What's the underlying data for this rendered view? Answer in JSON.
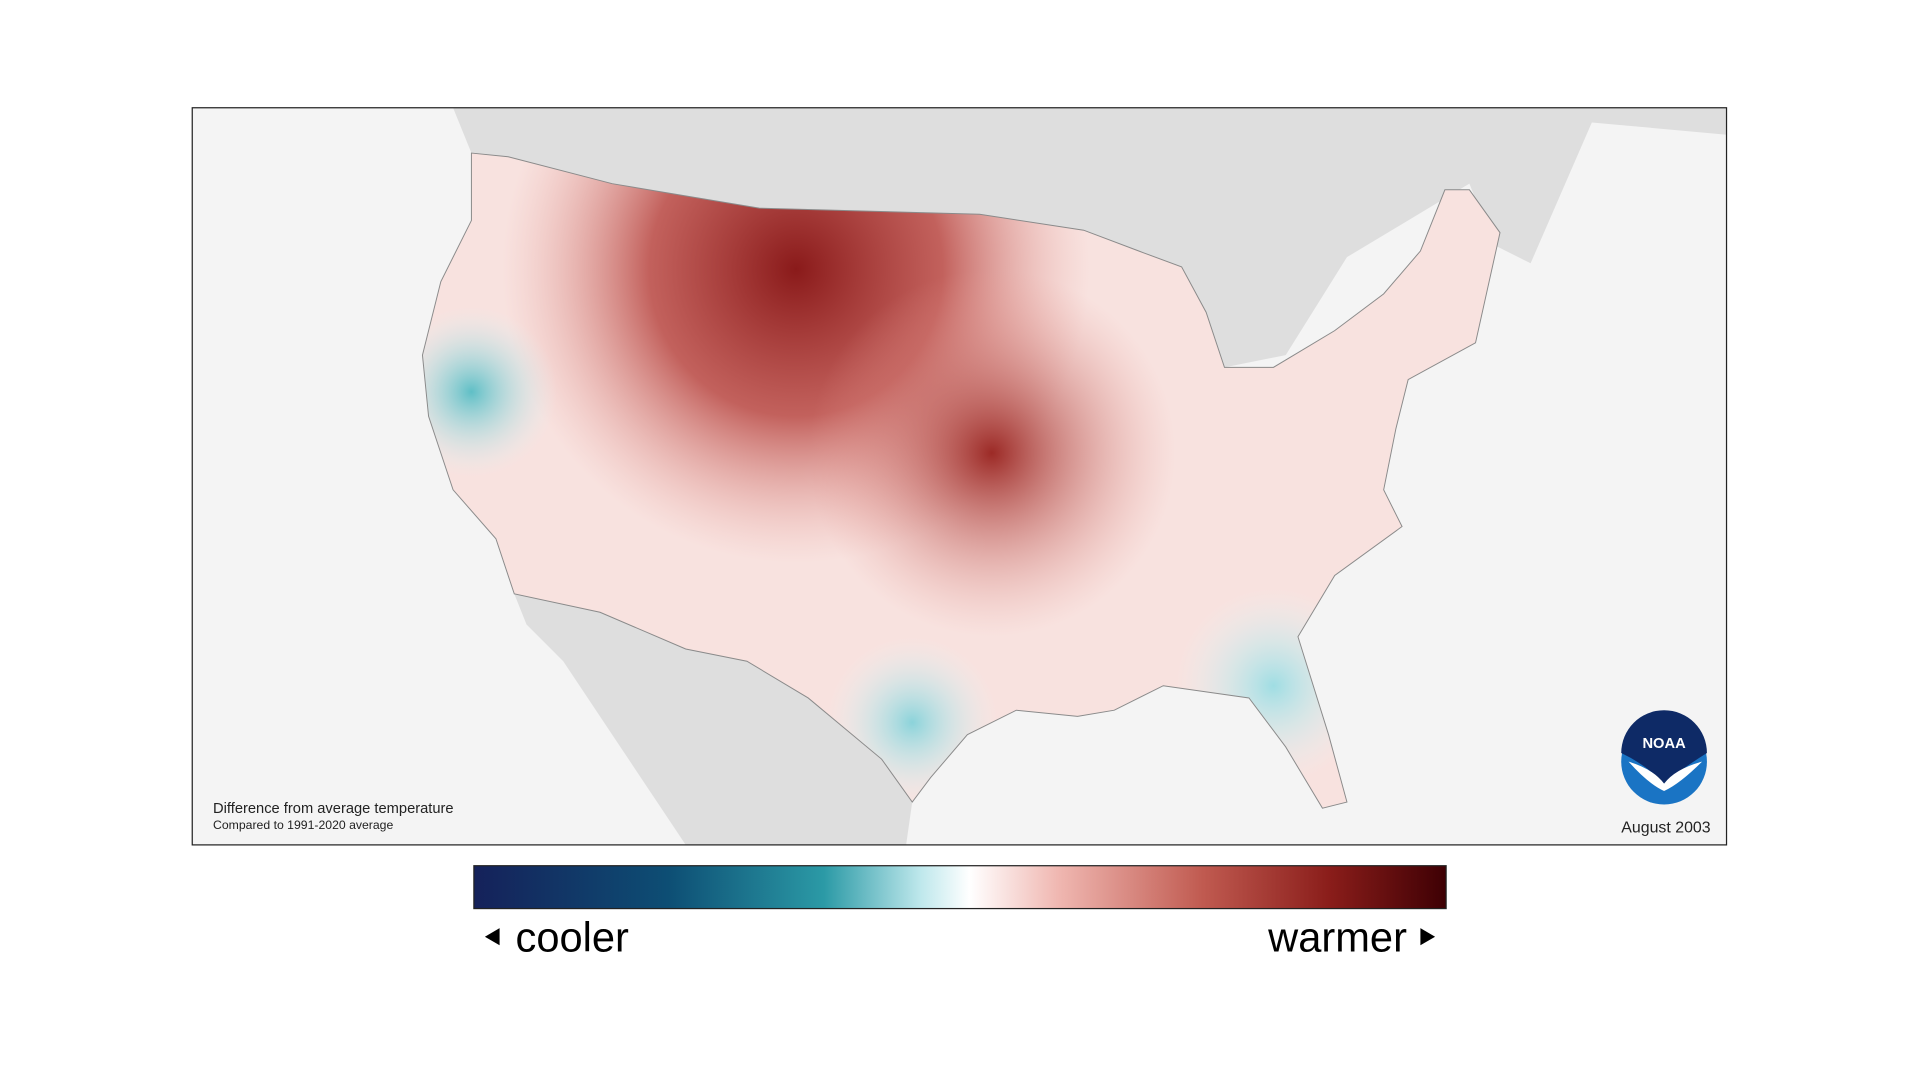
{
  "map": {
    "caption": {
      "title": "Difference from average temperature",
      "subtitle": "Compared to 1991-2020 average"
    },
    "date": "August 2003"
  },
  "logo": {
    "text": "NOAA"
  },
  "legend": {
    "low_label": "cooler",
    "high_label": "warmer"
  }
}
